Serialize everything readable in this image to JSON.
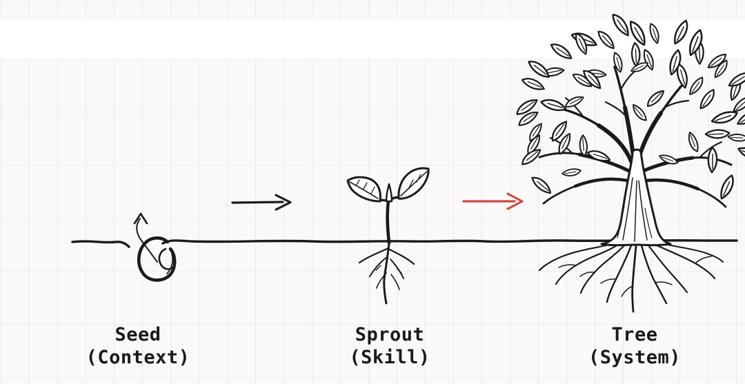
{
  "canvas": {
    "background": "#faf9f7",
    "band_color": "#ffffff",
    "grid_color": "#ebe9e4",
    "grid_color_h": "#efede9",
    "ink_color": "#1a1a1a",
    "accent_color": "#cd4b46"
  },
  "stages": [
    {
      "id": "seed",
      "label": "Seed",
      "sublabel": "(Context)",
      "icon": "seed-sketch-icon"
    },
    {
      "id": "sprout",
      "label": "Sprout",
      "sublabel": "(Skill)",
      "icon": "sprout-sketch-icon"
    },
    {
      "id": "tree",
      "label": "Tree",
      "sublabel": "(System)",
      "icon": "tree-sketch-icon"
    }
  ],
  "arrows": [
    {
      "id": "seed-to-sprout",
      "color_name": "black",
      "color": "#1a1a1a"
    },
    {
      "id": "sprout-to-tree",
      "color_name": "red",
      "color": "#cd4b46"
    }
  ]
}
